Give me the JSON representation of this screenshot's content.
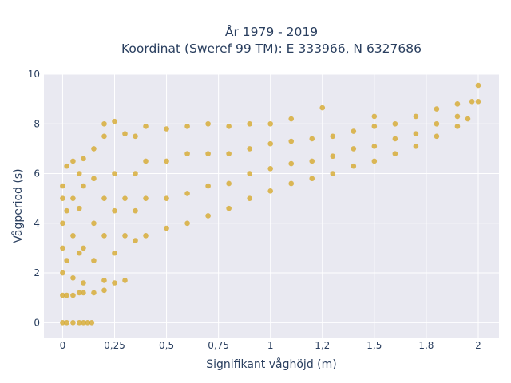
{
  "chart_data": {
    "type": "scatter",
    "title_line1": "År 1979 - 2019",
    "title_line2": "Koordinat (Sweref 99 TM): E 333966, N 6327686",
    "xlabel": "Signifikant våghöjd (m)",
    "ylabel": "Vågperiod (s)",
    "xlim": [
      -0.09,
      2.1
    ],
    "ylim": [
      -0.6,
      10
    ],
    "x_ticks": [
      0,
      0.25,
      0.5,
      0.75,
      1,
      1.25,
      1.5,
      1.75,
      2
    ],
    "x_tick_labels": [
      "0",
      "0,25",
      "0,5",
      "0,75",
      "1",
      "1,2",
      "1,5",
      "1,8",
      "2"
    ],
    "y_ticks": [
      0,
      2,
      4,
      6,
      8,
      10
    ],
    "y_tick_labels": [
      "0",
      "2",
      "4",
      "6",
      "8",
      "10"
    ],
    "grid": true,
    "marker_color": "#d4a420",
    "background_color": "#e9e9f1",
    "series": [
      {
        "points": [
          [
            0.0,
            0.0
          ],
          [
            0.02,
            0.0
          ],
          [
            0.05,
            0.0
          ],
          [
            0.08,
            0.0
          ],
          [
            0.1,
            0.0
          ],
          [
            0.12,
            0.0
          ],
          [
            0.14,
            0.0
          ],
          [
            0.0,
            1.1
          ],
          [
            0.0,
            2.0
          ],
          [
            0.0,
            3.0
          ],
          [
            0.0,
            4.0
          ],
          [
            0.0,
            5.0
          ],
          [
            0.0,
            5.5
          ],
          [
            0.02,
            1.1
          ],
          [
            0.02,
            2.5
          ],
          [
            0.02,
            4.5
          ],
          [
            0.02,
            6.3
          ],
          [
            0.05,
            1.1
          ],
          [
            0.05,
            1.8
          ],
          [
            0.05,
            3.5
          ],
          [
            0.05,
            5.0
          ],
          [
            0.05,
            6.5
          ],
          [
            0.08,
            1.2
          ],
          [
            0.08,
            2.8
          ],
          [
            0.08,
            4.6
          ],
          [
            0.08,
            6.0
          ],
          [
            0.1,
            1.2
          ],
          [
            0.1,
            1.6
          ],
          [
            0.1,
            3.0
          ],
          [
            0.1,
            5.5
          ],
          [
            0.1,
            6.6
          ],
          [
            0.15,
            1.2
          ],
          [
            0.15,
            2.5
          ],
          [
            0.15,
            4.0
          ],
          [
            0.15,
            5.8
          ],
          [
            0.15,
            7.0
          ],
          [
            0.2,
            1.3
          ],
          [
            0.2,
            1.7
          ],
          [
            0.2,
            3.5
          ],
          [
            0.2,
            5.0
          ],
          [
            0.2,
            7.5
          ],
          [
            0.2,
            8.0
          ],
          [
            0.25,
            1.6
          ],
          [
            0.25,
            2.8
          ],
          [
            0.25,
            4.5
          ],
          [
            0.25,
            6.0
          ],
          [
            0.25,
            8.1
          ],
          [
            0.3,
            1.7
          ],
          [
            0.3,
            3.5
          ],
          [
            0.3,
            5.0
          ],
          [
            0.3,
            7.6
          ],
          [
            0.35,
            3.3
          ],
          [
            0.35,
            4.5
          ],
          [
            0.35,
            6.0
          ],
          [
            0.35,
            7.5
          ],
          [
            0.4,
            3.5
          ],
          [
            0.4,
            5.0
          ],
          [
            0.4,
            6.5
          ],
          [
            0.4,
            7.9
          ],
          [
            0.5,
            3.8
          ],
          [
            0.5,
            5.0
          ],
          [
            0.5,
            6.5
          ],
          [
            0.5,
            7.8
          ],
          [
            0.6,
            4.0
          ],
          [
            0.6,
            5.2
          ],
          [
            0.6,
            6.8
          ],
          [
            0.6,
            7.9
          ],
          [
            0.7,
            4.3
          ],
          [
            0.7,
            5.5
          ],
          [
            0.7,
            6.8
          ],
          [
            0.7,
            8.0
          ],
          [
            0.8,
            4.6
          ],
          [
            0.8,
            5.6
          ],
          [
            0.8,
            6.8
          ],
          [
            0.8,
            7.9
          ],
          [
            0.9,
            5.0
          ],
          [
            0.9,
            6.0
          ],
          [
            0.9,
            7.0
          ],
          [
            0.9,
            8.0
          ],
          [
            1.0,
            5.3
          ],
          [
            1.0,
            6.2
          ],
          [
            1.0,
            7.2
          ],
          [
            1.0,
            8.0
          ],
          [
            1.1,
            5.6
          ],
          [
            1.1,
            6.4
          ],
          [
            1.1,
            7.3
          ],
          [
            1.1,
            8.2
          ],
          [
            1.2,
            5.8
          ],
          [
            1.2,
            6.5
          ],
          [
            1.2,
            7.4
          ],
          [
            1.25,
            8.65
          ],
          [
            1.3,
            6.0
          ],
          [
            1.3,
            6.7
          ],
          [
            1.3,
            7.5
          ],
          [
            1.4,
            6.3
          ],
          [
            1.4,
            7.0
          ],
          [
            1.4,
            7.7
          ],
          [
            1.5,
            6.5
          ],
          [
            1.5,
            7.1
          ],
          [
            1.5,
            7.9
          ],
          [
            1.5,
            8.3
          ],
          [
            1.6,
            6.8
          ],
          [
            1.6,
            7.4
          ],
          [
            1.6,
            8.0
          ],
          [
            1.7,
            7.1
          ],
          [
            1.7,
            7.6
          ],
          [
            1.7,
            8.3
          ],
          [
            1.8,
            7.5
          ],
          [
            1.8,
            8.0
          ],
          [
            1.8,
            8.6
          ],
          [
            1.9,
            7.9
          ],
          [
            1.9,
            8.3
          ],
          [
            1.9,
            8.8
          ],
          [
            1.95,
            8.2
          ],
          [
            1.97,
            8.9
          ],
          [
            2.0,
            8.9
          ],
          [
            2.0,
            9.55
          ]
        ]
      }
    ]
  }
}
